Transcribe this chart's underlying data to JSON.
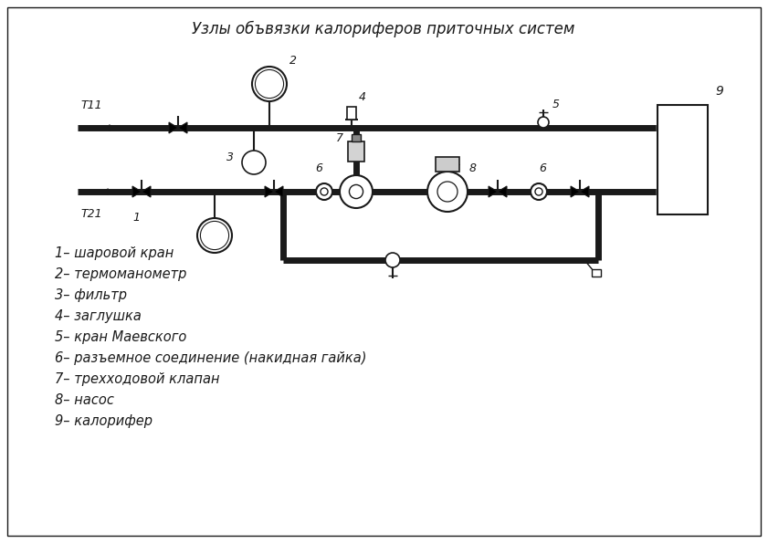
{
  "title": "Узлы объвязки калориферов приточных систем",
  "background_color": "#ffffff",
  "line_color": "#1a1a1a",
  "legend_items": [
    "1– шаровой кран",
    "2– термоманометр",
    "3– фильтр",
    "4– заглушка",
    "5– кран Маевского",
    "6– разъемное соединение (накидная гайка)",
    "7– трехходовой клапан",
    "8– насос",
    "9– калорифер"
  ],
  "label_T11": "T11",
  "label_T21": "T21"
}
